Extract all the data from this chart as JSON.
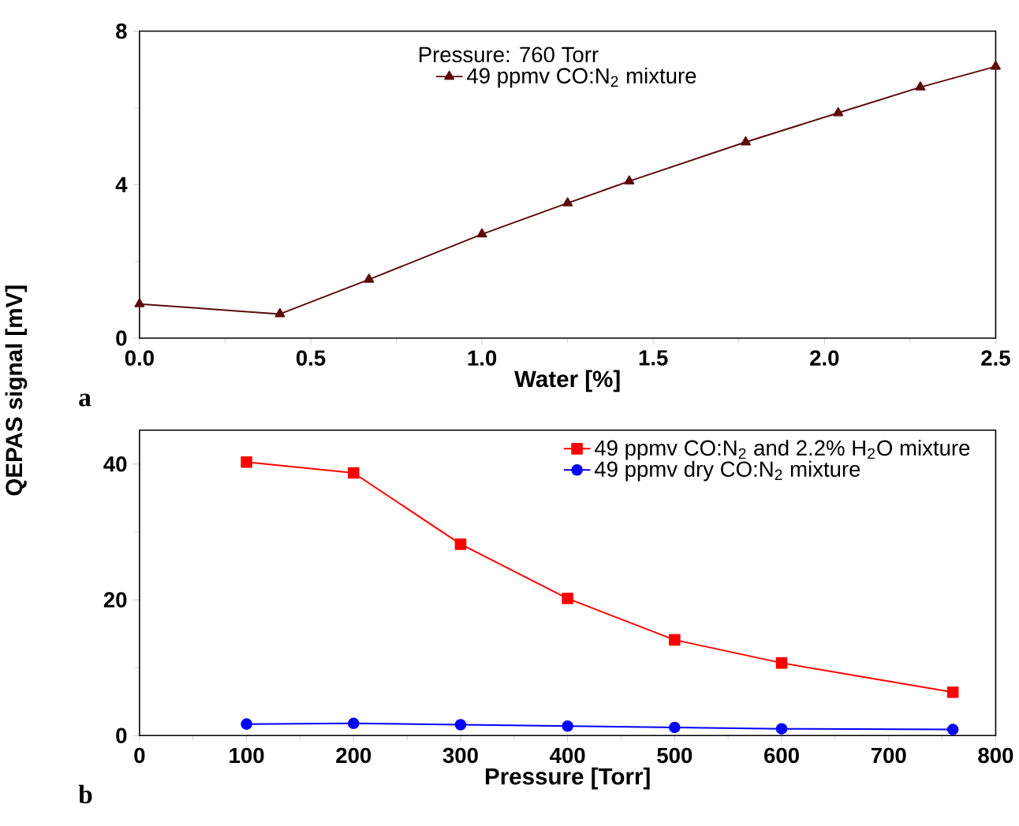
{
  "chart_data": [
    {
      "type": "line",
      "xlabel": "Water [%]",
      "ylabel": "QEPAS signal [mV]",
      "legend_title": "Pressure: 760 Torr",
      "legend": "top",
      "marker": "triangle",
      "annotations": [
        "a"
      ],
      "xlim": [
        0,
        2.5
      ],
      "ylim": [
        0,
        8
      ],
      "xticks": [
        {
          "value": 0,
          "label": "0.0"
        },
        {
          "value": 0.5,
          "label": "0.5"
        },
        {
          "value": 1,
          "label": "1.0"
        },
        {
          "value": 1.5,
          "label": "1.5"
        },
        {
          "value": 2,
          "label": "2.0"
        },
        {
          "value": 2.5,
          "label": "2.5"
        }
      ],
      "yticks": [
        0,
        4,
        8
      ],
      "x": [
        0,
        0.41,
        0.67,
        1.0,
        1.25,
        1.43,
        1.77,
        2.04,
        2.28,
        2.5
      ],
      "series": [
        {
          "name": "49 ppmv CO:N$_{2}$ mixture",
          "color": "#5c0a0a",
          "values": [
            0.89,
            0.63,
            1.53,
            2.71,
            3.52,
            4.09,
            5.11,
            5.87,
            6.54,
            7.08
          ]
        }
      ]
    },
    {
      "type": "line",
      "xlabel": "Pressure [Torr]",
      "legend": "top right",
      "annotations": [
        "b"
      ],
      "xlim": [
        0,
        800
      ],
      "ylim": [
        0,
        45
      ],
      "xticks": [
        0,
        100,
        200,
        300,
        400,
        500,
        600,
        700,
        800
      ],
      "yticks": [
        0,
        20,
        40
      ],
      "x": [
        100,
        200,
        300,
        400,
        500,
        600,
        760
      ],
      "series": [
        {
          "name": "49 ppmv CO:N$_{2}$ and 2.2% H$_{2}$O mixture",
          "color": "#ff0000",
          "marker": "square",
          "values": [
            40.3,
            38.7,
            28.2,
            20.2,
            14.1,
            10.7,
            6.4
          ]
        },
        {
          "name": "49 ppmv dry CO:N$_{2}$ mixture",
          "color": "#0000ff",
          "marker": "circle",
          "values": [
            1.7,
            1.8,
            1.6,
            1.4,
            1.2,
            1.0,
            0.9
          ]
        }
      ]
    }
  ]
}
